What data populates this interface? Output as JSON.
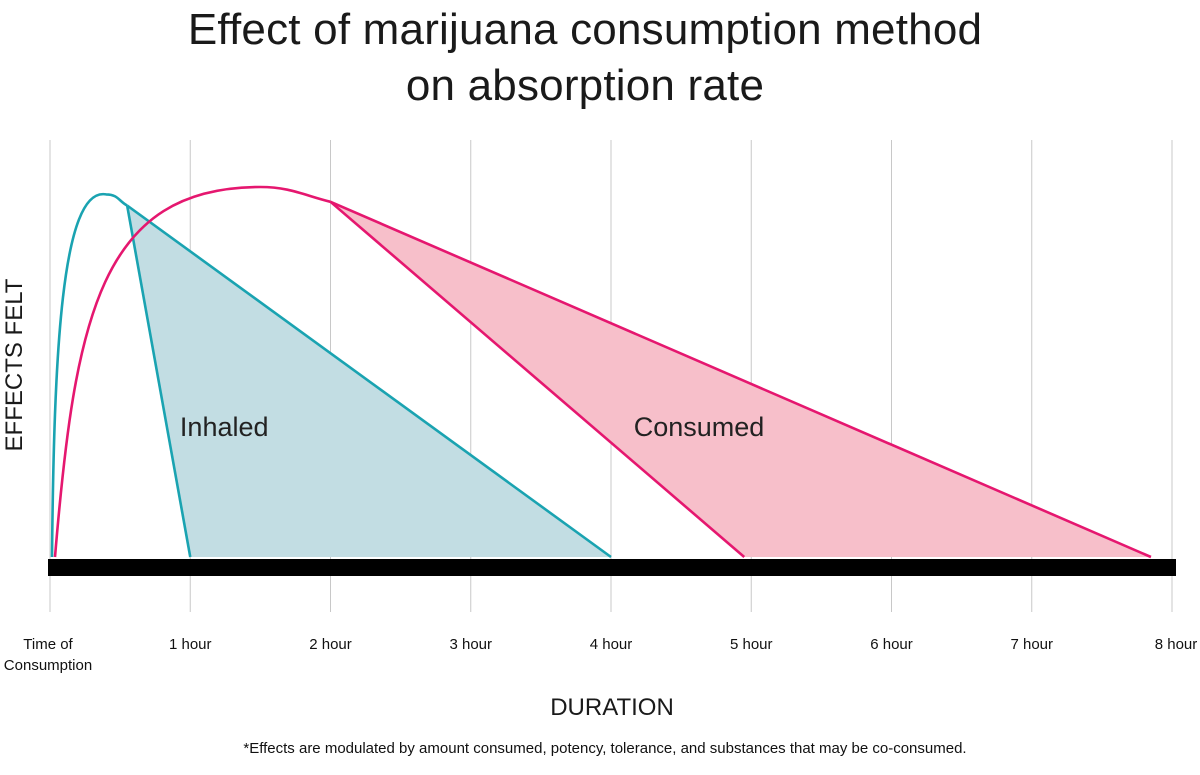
{
  "chart_data": {
    "type": "area",
    "title_line1": "Effect of marijuana consumption method",
    "title_line2": "on absorption rate",
    "xlabel": "DURATION",
    "ylabel": "EFFECTS FELT",
    "x_ticks": [
      {
        "value": 0,
        "label": [
          "Time of",
          "Consumption"
        ]
      },
      {
        "value": 1,
        "label": [
          "1 hour"
        ]
      },
      {
        "value": 2,
        "label": [
          "2 hour"
        ]
      },
      {
        "value": 3,
        "label": [
          "3 hour"
        ]
      },
      {
        "value": 4,
        "label": [
          "4 hour"
        ]
      },
      {
        "value": 5,
        "label": [
          "5 hour"
        ]
      },
      {
        "value": 6,
        "label": [
          "6 hour"
        ]
      },
      {
        "value": 7,
        "label": [
          "7 hour"
        ]
      },
      {
        "value": 8,
        "label": [
          "8 hour"
        ]
      }
    ],
    "xlim": [
      0,
      8
    ],
    "ylim": [
      0,
      10
    ],
    "series": [
      {
        "name": "Inhaled",
        "color": "#1aa3b1",
        "fill": "#c2dde3",
        "peak": {
          "x": 0.4,
          "y": 9.8
        },
        "curve_end": {
          "x": 0.55,
          "y": 9.5
        },
        "fast_drop_end": {
          "x": 1.0,
          "y": 0
        },
        "slow_drop_end": {
          "x": 4.0,
          "y": 0
        }
      },
      {
        "name": "Consumed",
        "color": "#e5176f",
        "fill": "#f7bfca",
        "peak": {
          "x": 1.5,
          "y": 10.0
        },
        "curve_end": {
          "x": 2.0,
          "y": 9.6
        },
        "fast_drop_end": {
          "x": 4.95,
          "y": 0
        },
        "slow_drop_end": {
          "x": 7.85,
          "y": 0
        }
      }
    ],
    "baseline_color": "#000000",
    "grid_color": "#c8c8c8"
  },
  "footnote": "*Effects are modulated by amount consumed, potency, tolerance, and substances that may be co-consumed."
}
